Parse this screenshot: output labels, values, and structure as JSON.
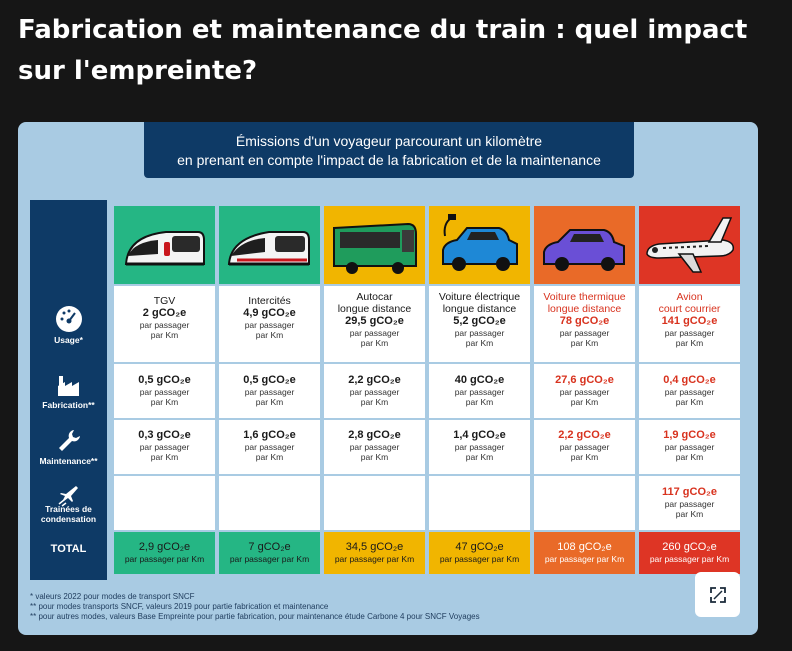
{
  "title": "Fabrication et maintenance du train : quel impact sur l'empreinte?",
  "banner": {
    "line1": "Émissions d'un voyageur parcourant un kilomètre",
    "line2": "en prenant en compte l'impact de la fabrication et de la maintenance"
  },
  "row_labels": {
    "usage": "Usage*",
    "fabrication": "Fabrication**",
    "maintenance": "Maintenance**",
    "trainees_1": "Trainées de",
    "trainees_2": "condensation",
    "total": "TOTAL"
  },
  "unit": {
    "line1": "par passager",
    "line2": "par Km",
    "total": "par passager par Km"
  },
  "modes": [
    {
      "name_1": "TGV",
      "name_2": "",
      "usage": "2 gCO₂e",
      "fabrication": "0,5 gCO₂e",
      "maintenance": "0,3 gCO₂e",
      "trainees": "",
      "total": "2,9 gCO₂e"
    },
    {
      "name_1": "Intercités",
      "name_2": "",
      "usage": "4,9 gCO₂e",
      "fabrication": "0,5 gCO₂e",
      "maintenance": "1,6 gCO₂e",
      "trainees": "",
      "total": "7 gCO₂e"
    },
    {
      "name_1": "Autocar",
      "name_2": "longue distance",
      "usage": "29,5 gCO₂e",
      "fabrication": "2,2 gCO₂e",
      "maintenance": "2,8 gCO₂e",
      "trainees": "",
      "total": "34,5 gCO₂e"
    },
    {
      "name_1": "Voiture électrique",
      "name_2": "longue distance",
      "usage": "5,2 gCO₂e",
      "fabrication": "40 gCO₂e",
      "maintenance": "1,4 gCO₂e",
      "trainees": "",
      "total": "47 gCO₂e"
    },
    {
      "name_1": "Voiture thermique",
      "name_2": "longue distance",
      "usage": "78 gCO₂e",
      "fabrication": "27,6 gCO₂e",
      "maintenance": "2,2 gCO₂e",
      "trainees": "",
      "total": "108 gCO₂e"
    },
    {
      "name_1": "Avion",
      "name_2": "court courrier",
      "usage": "141 gCO₂e",
      "fabrication": "0,4 gCO₂e",
      "maintenance": "1,9 gCO₂e",
      "trainees": "117 gCO₂e",
      "total": "260 gCO₂e"
    }
  ],
  "footnotes": {
    "f1": "* valeurs 2022 pour modes de transport SNCF",
    "f2": "** pour modes transports SNCF, valeurs 2019 pour partie fabrication et maintenance",
    "f3": "** pour autres modes, valeurs Base Empreinte pour partie fabrication, pour maintenance étude Carbone 4 pour SNCF Voyages"
  },
  "colors": {
    "green": "#25b684",
    "yellow": "#f1b500",
    "orange": "#e96a28",
    "red": "#de3525",
    "navy": "#0e3a66",
    "accent_red": "#d8321e"
  },
  "icons": {
    "usage": "speedometer-icon",
    "fabrication": "factory-icon",
    "maintenance": "wrench-icon",
    "trainees": "plane-trail-icon",
    "expand": "expand-icon"
  }
}
